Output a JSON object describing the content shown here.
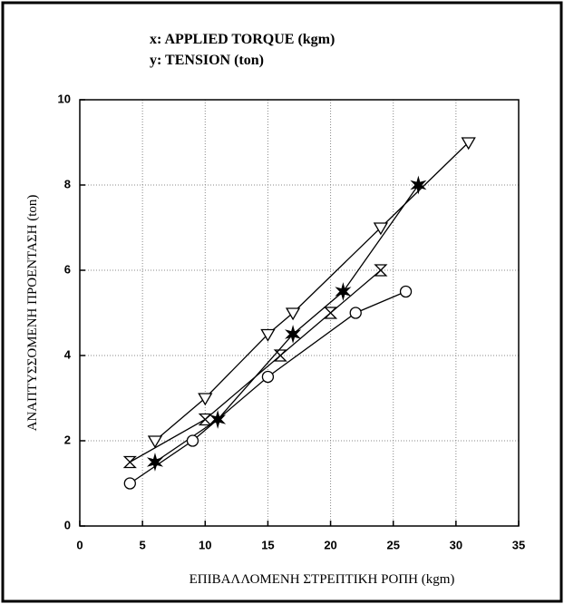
{
  "chart_data": {
    "type": "line",
    "annotations": [
      "x:  APPLIED TORQUE (kgm)",
      "y:  TENSION (ton)"
    ],
    "x_label": "ΕΠΙΒΑΛΛΟΜΕΝΗ ΣΤΡΕΠΤΙΚΗ ΡΟΠΗ (kgm)",
    "y_label": "ΑΝΑΠΤΥΣΣΟΜΕΝΗ ΠΡΟΕΝΤΑΣΗ (ton)",
    "xlim": [
      0,
      35
    ],
    "xticks": [
      0,
      5,
      10,
      15,
      20,
      25,
      30,
      35
    ],
    "ylim": [
      0,
      10
    ],
    "yticks": [
      0,
      2,
      4,
      6,
      8,
      10
    ],
    "grid": true,
    "series": [
      {
        "marker": "triangle-down",
        "color": "#000000",
        "x": [
          6,
          10,
          15,
          17,
          24,
          31
        ],
        "values": [
          2.0,
          3.0,
          4.5,
          5.0,
          7.0,
          9.0
        ]
      },
      {
        "marker": "hourglass",
        "color": "#000000",
        "x": [
          4,
          10,
          16,
          20,
          24
        ],
        "values": [
          1.5,
          2.5,
          4.0,
          5.0,
          6.0
        ]
      },
      {
        "marker": "star",
        "color": "#000000",
        "x": [
          6,
          11,
          17,
          21,
          27
        ],
        "values": [
          1.5,
          2.5,
          4.5,
          5.5,
          8.0
        ]
      },
      {
        "marker": "circle",
        "color": "#000000",
        "x": [
          4,
          9,
          15,
          22,
          26
        ],
        "values": [
          1.0,
          2.0,
          3.5,
          5.0,
          5.5
        ]
      }
    ]
  }
}
